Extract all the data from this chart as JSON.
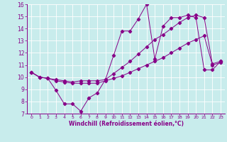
{
  "xlabel": "Windchill (Refroidissement éolien,°C)",
  "xlim": [
    -0.5,
    23.5
  ],
  "ylim": [
    7,
    16
  ],
  "yticks": [
    7,
    8,
    9,
    10,
    11,
    12,
    13,
    14,
    15,
    16
  ],
  "xticks": [
    0,
    1,
    2,
    3,
    4,
    5,
    6,
    7,
    8,
    9,
    10,
    11,
    12,
    13,
    14,
    15,
    16,
    17,
    18,
    19,
    20,
    21,
    22,
    23
  ],
  "bg_color": "#c8ecec",
  "line_color": "#880088",
  "grid_color": "#aadddd",
  "line1_x": [
    0,
    1,
    2,
    3,
    4,
    5,
    6,
    7,
    8,
    9,
    10,
    11,
    12,
    13,
    14,
    15,
    16,
    17,
    18,
    19,
    20,
    21,
    22,
    23
  ],
  "line1_y": [
    10.4,
    10.0,
    9.9,
    8.9,
    7.8,
    7.8,
    7.2,
    8.3,
    8.7,
    9.8,
    11.8,
    13.8,
    13.8,
    14.8,
    16.0,
    11.5,
    14.2,
    14.9,
    14.9,
    15.1,
    14.9,
    10.6,
    10.6,
    11.3
  ],
  "line2_x": [
    0,
    1,
    2,
    3,
    4,
    5,
    6,
    7,
    8,
    9,
    10,
    11,
    12,
    13,
    14,
    15,
    16,
    17,
    18,
    19,
    20,
    21,
    22,
    23
  ],
  "line2_y": [
    10.4,
    10.0,
    9.9,
    9.8,
    9.7,
    9.6,
    9.7,
    9.7,
    9.7,
    9.8,
    10.3,
    10.8,
    11.3,
    11.9,
    12.5,
    13.1,
    13.5,
    14.0,
    14.5,
    14.9,
    15.1,
    14.9,
    11.1,
    11.3
  ],
  "line3_x": [
    0,
    1,
    2,
    3,
    4,
    5,
    6,
    7,
    8,
    9,
    10,
    11,
    12,
    13,
    14,
    15,
    16,
    17,
    18,
    19,
    20,
    21,
    22,
    23
  ],
  "line3_y": [
    10.4,
    10.0,
    9.9,
    9.7,
    9.6,
    9.5,
    9.5,
    9.5,
    9.5,
    9.7,
    9.9,
    10.1,
    10.4,
    10.7,
    11.0,
    11.3,
    11.6,
    12.0,
    12.4,
    12.8,
    13.1,
    13.4,
    11.0,
    11.2
  ]
}
